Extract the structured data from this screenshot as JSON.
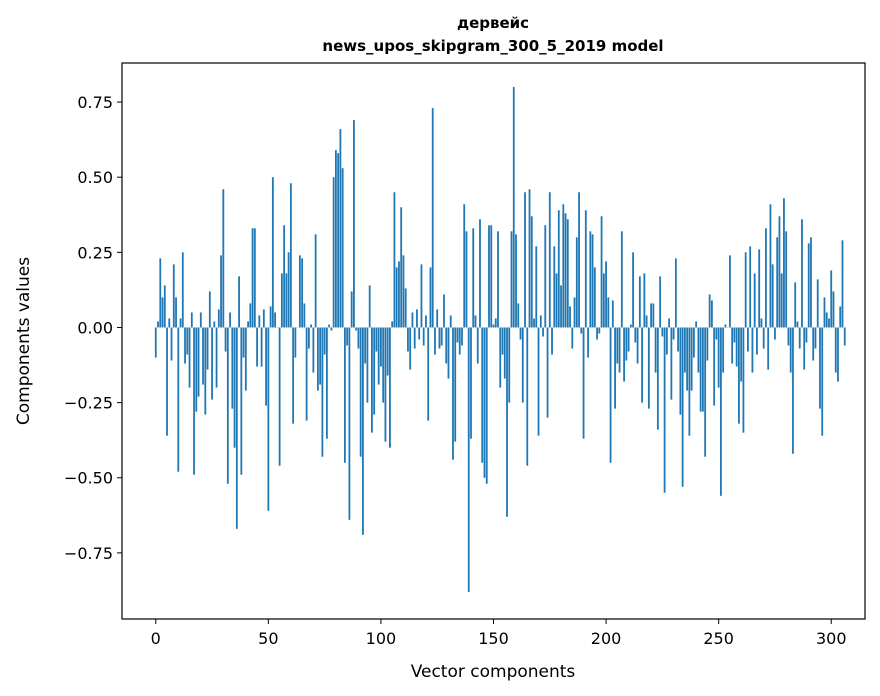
{
  "chart_data": {
    "type": "bar",
    "title_lines": [
      "дервейс",
      "news_upos_skipgram_300_5_2019 model"
    ],
    "xlabel": "Vector components",
    "ylabel": "Components values",
    "xlim": [
      -15,
      315
    ],
    "ylim": [
      -0.97,
      0.88
    ],
    "xticks": [
      0,
      50,
      100,
      150,
      200,
      250,
      300
    ],
    "xtick_labels": [
      "0",
      "50",
      "100",
      "150",
      "200",
      "250",
      "300"
    ],
    "yticks": [
      -0.75,
      -0.5,
      -0.25,
      0.0,
      0.25,
      0.5,
      0.75
    ],
    "ytick_labels": [
      "−0.75",
      "−0.50",
      "−0.25",
      "0.00",
      "0.25",
      "0.50",
      "0.75"
    ],
    "bar_color": "#1f77b4",
    "values": [
      -0.1,
      0.02,
      0.23,
      0.1,
      0.14,
      -0.36,
      0.03,
      -0.11,
      0.21,
      0.1,
      -0.48,
      0.03,
      0.25,
      -0.12,
      -0.09,
      -0.2,
      0.05,
      -0.49,
      -0.28,
      -0.23,
      0.05,
      -0.19,
      -0.29,
      -0.14,
      0.12,
      -0.24,
      0.02,
      -0.2,
      0.06,
      0.24,
      0.46,
      -0.08,
      -0.52,
      0.05,
      -0.27,
      -0.4,
      -0.67,
      0.17,
      -0.49,
      -0.1,
      -0.21,
      0.02,
      0.08,
      0.33,
      0.33,
      -0.13,
      0.04,
      -0.13,
      0.06,
      -0.26,
      -0.61,
      0.07,
      0.5,
      0.05,
      0.0,
      -0.46,
      0.18,
      0.34,
      0.18,
      0.25,
      0.48,
      -0.32,
      -0.1,
      0.0,
      0.24,
      0.23,
      0.08,
      -0.31,
      -0.07,
      0.01,
      -0.15,
      0.31,
      -0.21,
      -0.19,
      -0.43,
      -0.09,
      -0.37,
      0.01,
      -0.01,
      0.5,
      0.59,
      0.58,
      0.66,
      0.53,
      -0.45,
      -0.06,
      -0.64,
      0.12,
      0.69,
      -0.01,
      -0.07,
      -0.43,
      -0.69,
      -0.12,
      -0.25,
      0.14,
      -0.35,
      -0.29,
      -0.08,
      -0.19,
      -0.13,
      -0.25,
      -0.38,
      -0.16,
      -0.4,
      0.02,
      0.45,
      0.2,
      0.22,
      0.4,
      0.24,
      0.13,
      -0.08,
      -0.14,
      0.05,
      -0.07,
      0.06,
      -0.04,
      0.21,
      -0.06,
      0.04,
      -0.31,
      0.2,
      0.73,
      -0.09,
      0.06,
      -0.07,
      -0.06,
      0.11,
      -0.12,
      -0.17,
      0.04,
      -0.44,
      -0.38,
      -0.05,
      -0.09,
      -0.06,
      0.41,
      0.32,
      -0.88,
      -0.37,
      0.33,
      0.04,
      -0.12,
      0.36,
      -0.45,
      -0.5,
      -0.52,
      0.34,
      0.34,
      0.01,
      0.03,
      0.32,
      -0.2,
      -0.09,
      -0.17,
      -0.63,
      -0.25,
      0.32,
      0.8,
      0.31,
      0.08,
      -0.04,
      -0.25,
      0.45,
      -0.46,
      0.46,
      0.37,
      0.03,
      0.27,
      -0.36,
      0.04,
      -0.03,
      0.34,
      -0.3,
      0.45,
      -0.09,
      0.27,
      0.18,
      0.39,
      0.14,
      0.41,
      0.38,
      0.36,
      0.07,
      -0.07,
      0.1,
      0.3,
      0.45,
      -0.02,
      -0.37,
      0.39,
      -0.1,
      0.32,
      0.31,
      0.2,
      -0.04,
      -0.02,
      0.37,
      0.18,
      0.22,
      0.1,
      -0.45,
      0.09,
      -0.27,
      -0.12,
      -0.15,
      0.32,
      -0.18,
      -0.11,
      -0.08,
      0.01,
      0.25,
      -0.05,
      -0.12,
      0.17,
      -0.25,
      0.18,
      0.04,
      -0.27,
      0.08,
      0.08,
      -0.15,
      -0.34,
      0.17,
      -0.03,
      -0.55,
      -0.09,
      0.03,
      -0.24,
      -0.04,
      0.23,
      -0.08,
      -0.29,
      -0.53,
      -0.15,
      -0.21,
      -0.36,
      -0.21,
      -0.1,
      0.02,
      -0.15,
      -0.28,
      -0.28,
      -0.43,
      -0.11,
      0.11,
      0.09,
      -0.26,
      -0.04,
      -0.2,
      -0.56,
      -0.15,
      0.01,
      0.0,
      0.24,
      -0.12,
      -0.05,
      -0.13,
      -0.32,
      -0.18,
      -0.35,
      0.25,
      -0.08,
      0.27,
      -0.15,
      0.18,
      -0.09,
      0.26,
      0.03,
      -0.07,
      0.33,
      -0.14,
      0.41,
      0.21,
      -0.04,
      0.3,
      0.37,
      0.18,
      0.43,
      0.32,
      -0.06,
      -0.15,
      -0.42,
      0.15,
      0.02,
      -0.07,
      0.36,
      -0.14,
      -0.05,
      0.28,
      0.3,
      -0.11,
      -0.07,
      0.16,
      -0.27,
      -0.36,
      0.1,
      0.05,
      0.03,
      0.19,
      0.12,
      -0.15,
      -0.18,
      0.07,
      0.29,
      -0.06
    ]
  }
}
